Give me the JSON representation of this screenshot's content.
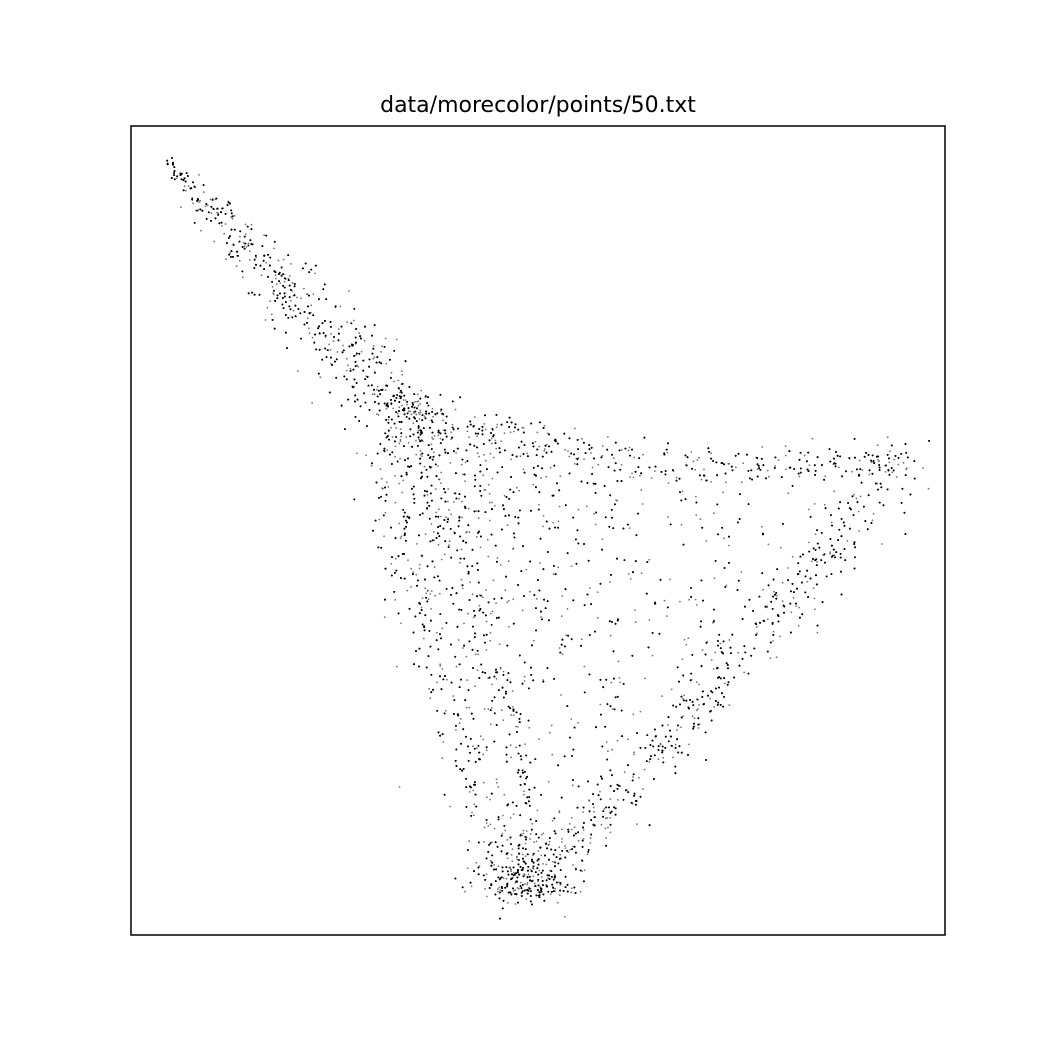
{
  "chart_data": {
    "type": "scatter",
    "title": "data/morecolor/points/50.txt",
    "xlabel": "",
    "ylabel": "",
    "xlim": [
      0,
      1
    ],
    "ylim": [
      0,
      1
    ],
    "axis_ticks": "none",
    "grid": false,
    "legend": "none",
    "marker_color": "#000000",
    "background": "#ffffff",
    "frame_color": "#000000",
    "structure": {
      "description_points": [
        [
          0.05,
          0.95
        ],
        [
          0.12,
          0.88
        ],
        [
          0.22,
          0.78
        ],
        [
          0.31,
          0.67
        ],
        [
          0.42,
          0.6
        ],
        [
          0.58,
          0.55
        ],
        [
          0.72,
          0.53
        ],
        [
          0.85,
          0.52
        ],
        [
          0.95,
          0.59
        ],
        [
          0.84,
          0.42
        ],
        [
          0.7,
          0.27
        ],
        [
          0.58,
          0.13
        ],
        [
          0.48,
          0.05
        ],
        [
          0.43,
          0.06
        ],
        [
          0.36,
          0.2
        ],
        [
          0.34,
          0.4
        ],
        [
          0.33,
          0.63
        ],
        [
          0.4,
          0.58
        ],
        [
          0.47,
          0.3
        ],
        [
          0.5,
          0.1
        ]
      ]
    },
    "series": [
      {
        "n_points": 14000,
        "outliers": [
          [
            0.205,
            0.697
          ],
          [
            0.33,
            0.183
          ]
        ]
      }
    ]
  }
}
